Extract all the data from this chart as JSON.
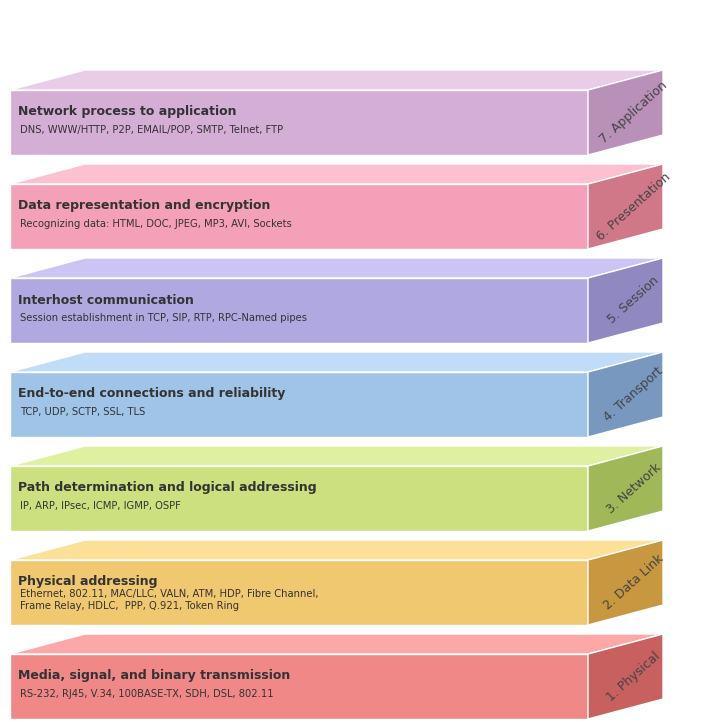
{
  "layers": [
    {
      "number": 7,
      "name": "Application",
      "title": "Network process to application",
      "subtitle": "DNS, WWW/HTTP, P2P, EMAIL/POP, SMTP, Telnet, FTP",
      "front_color": "#d4aed4",
      "top_color": "#e8cce8",
      "side_color": "#b890b8",
      "text_color": "#333333"
    },
    {
      "number": 6,
      "name": "Presentation",
      "title": "Data representation and encryption",
      "subtitle": "Recognizing data: HTML, DOC, JPEG, MP3, AVI, Sockets",
      "front_color": "#f4a0b8",
      "top_color": "#fcc0d0",
      "side_color": "#d07888",
      "text_color": "#333333"
    },
    {
      "number": 5,
      "name": "Session",
      "title": "Interhost communication",
      "subtitle": "Session establishment in TCP, SIP, RTP, RPC-Named pipes",
      "front_color": "#b0a8e0",
      "top_color": "#ccc4f4",
      "side_color": "#9088c0",
      "text_color": "#333333"
    },
    {
      "number": 4,
      "name": "Transport",
      "title": "End-to-end connections and reliability",
      "subtitle": "TCP, UDP, SCTP, SSL, TLS",
      "front_color": "#a0c4e8",
      "top_color": "#c0dcf8",
      "side_color": "#7898c0",
      "text_color": "#333333"
    },
    {
      "number": 3,
      "name": "Network",
      "title": "Path determination and logical addressing",
      "subtitle": "IP, ARP, IPsec, ICMP, IGMP, OSPF",
      "front_color": "#cce080",
      "top_color": "#dff0a0",
      "side_color": "#a0b858",
      "text_color": "#333333"
    },
    {
      "number": 2,
      "name": "Data Link",
      "title": "Physical addressing",
      "subtitle": "Ethernet, 802.11, MAC/LLC, VALN, ATM, HDP, Fibre Channel,\nFrame Relay, HDLC,  PPP, Q.921, Token Ring",
      "front_color": "#f0c870",
      "top_color": "#fce098",
      "side_color": "#c89840",
      "text_color": "#333333"
    },
    {
      "number": 1,
      "name": "Physical",
      "title": "Media, signal, and binary transmission",
      "subtitle": "RS-232, RJ45, V.34, 100BASE-TX, SDH, DSL, 802.11",
      "front_color": "#f08888",
      "top_color": "#fca8a8",
      "side_color": "#c86060",
      "text_color": "#333333"
    }
  ],
  "background_color": "#ffffff"
}
